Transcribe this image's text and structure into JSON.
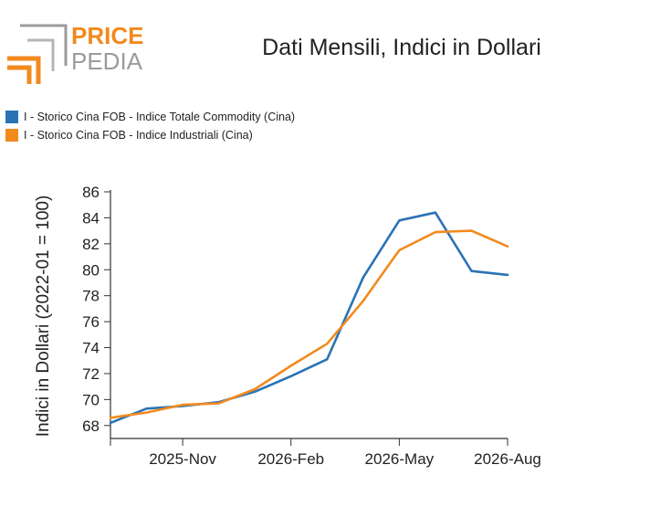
{
  "brand": {
    "top": "PRICE",
    "bottom": "PEDIA"
  },
  "chart_data": {
    "type": "line",
    "title": "Dati Mensili, Indici in Dollari",
    "ylabel": "Indici in Dollari (2022-01 = 100)",
    "xlabel": "",
    "ylim": [
      67,
      86
    ],
    "yticks": [
      68,
      70,
      72,
      74,
      76,
      78,
      80,
      82,
      84,
      86
    ],
    "x": [
      "2025-Sep",
      "2025-Oct",
      "2025-Nov",
      "2025-Dec",
      "2026-Jan",
      "2026-Feb",
      "2026-Mar",
      "2026-Apr",
      "2026-May",
      "2026-Jun",
      "2026-Jul",
      "2026-Aug"
    ],
    "xtick_labels": [
      "2025-Nov",
      "2026-Feb",
      "2026-May",
      "2026-Aug"
    ],
    "legend_position": "top-left",
    "series": [
      {
        "name": "I - Storico Cina FOB - Indice Totale Commodity (Cina)",
        "color": "#2a73b5",
        "values": [
          68.2,
          69.3,
          69.5,
          69.8,
          70.6,
          71.8,
          73.1,
          79.4,
          83.8,
          84.4,
          79.9,
          79.6
        ]
      },
      {
        "name": "I - Storico Cina FOB - Indice Industriali (Cina)",
        "color": "#f28a1e",
        "values": [
          68.6,
          69.0,
          69.6,
          69.7,
          70.8,
          72.6,
          74.3,
          77.6,
          81.5,
          82.9,
          83.0,
          81.8
        ]
      }
    ]
  }
}
